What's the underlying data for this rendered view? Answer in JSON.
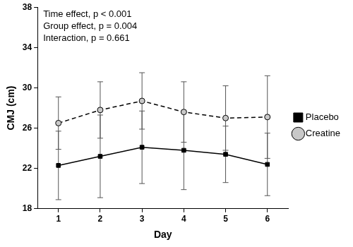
{
  "chart_data": {
    "type": "line",
    "annotations": [
      "Time effect, p < 0.001",
      "Group effect, p = 0.004",
      "Interaction, p = 0.661"
    ],
    "x_label": "Day",
    "y_label": "CMJ (cm)",
    "categories": [
      "1",
      "2",
      "3",
      "4",
      "5",
      "6"
    ],
    "series": [
      {
        "name": "Placebo",
        "color": "#000000",
        "marker": "square",
        "line_style": "solid",
        "values": [
          22.3,
          23.2,
          24.1,
          23.8,
          23.4,
          22.4
        ],
        "errors": [
          3.4,
          4.1,
          3.6,
          3.9,
          2.8,
          3.1
        ]
      },
      {
        "name": "Creatine",
        "color": "#000000",
        "marker": "circle",
        "line_style": "dashed",
        "values": [
          26.5,
          27.8,
          28.7,
          27.6,
          27.0,
          27.1
        ],
        "errors": [
          2.6,
          2.8,
          2.8,
          3.0,
          3.2,
          4.1
        ]
      }
    ],
    "ylim": [
      18,
      38
    ],
    "yticks": [
      18,
      22,
      26,
      30,
      34,
      38
    ],
    "grid": false,
    "legend": "right"
  }
}
